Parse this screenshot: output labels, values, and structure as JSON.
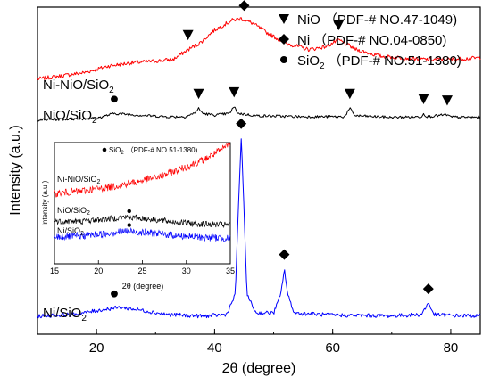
{
  "chart_data": {
    "type": "line",
    "xlabel": "2θ (degree)",
    "ylabel": "Intensity (a.u.)",
    "xlim": [
      10,
      85
    ],
    "x_ticks": [
      20,
      40,
      60,
      80
    ],
    "y_ticks_shown": false,
    "legend_position": "top-right",
    "legend": [
      {
        "marker": "triangle-down",
        "name": "NiO",
        "ref": "（PDF-# NO.47-1049)"
      },
      {
        "marker": "diamond",
        "name": "Ni",
        "ref": "（PDF-# NO.04-0850)"
      },
      {
        "marker": "circle",
        "name": "SiO",
        "sub": "2",
        "ref": "（PDF-# NO.51-1380)"
      }
    ],
    "series": [
      {
        "label_main": "Ni-NiO/SiO",
        "label_sub": "2",
        "color": "#ff0000",
        "points": [
          [
            10,
            0.78
          ],
          [
            14,
            0.79
          ],
          [
            18,
            0.8
          ],
          [
            22,
            0.82
          ],
          [
            26,
            0.83
          ],
          [
            30,
            0.835
          ],
          [
            33,
            0.84
          ],
          [
            35.5,
            0.87
          ],
          [
            37.5,
            0.89
          ],
          [
            40,
            0.93
          ],
          [
            43,
            0.96
          ],
          [
            44.5,
            0.965
          ],
          [
            46.5,
            0.95
          ],
          [
            49,
            0.92
          ],
          [
            52,
            0.89
          ],
          [
            56,
            0.87
          ],
          [
            59,
            0.88
          ],
          [
            61,
            0.9
          ],
          [
            64,
            0.87
          ],
          [
            68,
            0.85
          ],
          [
            72,
            0.845
          ],
          [
            76,
            0.84
          ],
          [
            80,
            0.84
          ],
          [
            85,
            0.845
          ]
        ]
      },
      {
        "label_main": "NiO/SiO",
        "label_sub": "2",
        "color": "#000000",
        "points": [
          [
            10,
            0.655
          ],
          [
            20,
            0.66
          ],
          [
            23,
            0.675
          ],
          [
            27,
            0.67
          ],
          [
            32,
            0.665
          ],
          [
            35,
            0.665
          ],
          [
            36.5,
            0.675
          ],
          [
            37.3,
            0.69
          ],
          [
            38,
            0.675
          ],
          [
            40,
            0.67
          ],
          [
            42.5,
            0.675
          ],
          [
            43.3,
            0.695
          ],
          [
            44,
            0.675
          ],
          [
            47,
            0.668
          ],
          [
            55,
            0.665
          ],
          [
            62,
            0.665
          ],
          [
            62.9,
            0.69
          ],
          [
            63.8,
            0.668
          ],
          [
            70,
            0.663
          ],
          [
            75,
            0.665
          ],
          [
            75.4,
            0.674
          ],
          [
            76,
            0.665
          ],
          [
            79.3,
            0.671
          ],
          [
            80,
            0.664
          ],
          [
            85,
            0.663
          ]
        ]
      },
      {
        "label_main": "Ni/SiO",
        "label_sub": "2",
        "color": "#0000ff",
        "points": [
          [
            10,
            0.055
          ],
          [
            16,
            0.06
          ],
          [
            21,
            0.075
          ],
          [
            24,
            0.082
          ],
          [
            27,
            0.075
          ],
          [
            32,
            0.06
          ],
          [
            38,
            0.055
          ],
          [
            42,
            0.06
          ],
          [
            43.5,
            0.12
          ],
          [
            44.1,
            0.42
          ],
          [
            44.5,
            0.6
          ],
          [
            44.9,
            0.42
          ],
          [
            45.5,
            0.12
          ],
          [
            47,
            0.065
          ],
          [
            50,
            0.065
          ],
          [
            51.2,
            0.12
          ],
          [
            51.8,
            0.2
          ],
          [
            52.4,
            0.12
          ],
          [
            53.5,
            0.065
          ],
          [
            60,
            0.058
          ],
          [
            70,
            0.056
          ],
          [
            75,
            0.06
          ],
          [
            76.2,
            0.095
          ],
          [
            77.2,
            0.06
          ],
          [
            80,
            0.057
          ],
          [
            85,
            0.056
          ]
        ]
      }
    ],
    "markers": [
      {
        "type": "triangle-down",
        "x": 35.5,
        "series": "Ni-NiO/SiO2"
      },
      {
        "type": "diamond",
        "x": 45,
        "series": "Ni-NiO/SiO2"
      },
      {
        "type": "triangle-down",
        "x": 61,
        "series": "Ni-NiO/SiO2"
      },
      {
        "type": "circle",
        "x": 23,
        "series": "NiO/SiO2"
      },
      {
        "type": "triangle-down",
        "x": 37.3,
        "series": "NiO/SiO2"
      },
      {
        "type": "triangle-down",
        "x": 43.3,
        "series": "NiO/SiO2"
      },
      {
        "type": "triangle-down",
        "x": 62.9,
        "series": "NiO/SiO2"
      },
      {
        "type": "triangle-down",
        "x": 75.4,
        "series": "NiO/SiO2"
      },
      {
        "type": "triangle-down",
        "x": 79.4,
        "series": "NiO/SiO2"
      },
      {
        "type": "diamond",
        "x": 44.5,
        "series": "Ni/SiO2"
      },
      {
        "type": "diamond",
        "x": 51.8,
        "series": "Ni/SiO2"
      },
      {
        "type": "diamond",
        "x": 76.2,
        "series": "Ni/SiO2"
      },
      {
        "type": "circle",
        "x": 23,
        "series": "Ni/SiO2"
      }
    ],
    "inset": {
      "xlabel": "2θ (degree)",
      "ylabel": "Intensity (a.u.)",
      "xlim": [
        15,
        35
      ],
      "x_ticks": [
        15,
        20,
        25,
        30,
        35
      ],
      "legend": {
        "marker": "circle",
        "name": "SiO",
        "sub": "2",
        "ref": "（PDF-# NO.51-1380)"
      },
      "series": [
        {
          "label_main": "Ni-NiO/SiO",
          "label_sub": "2",
          "color": "#ff0000",
          "points": [
            [
              15,
              0.58
            ],
            [
              18,
              0.6
            ],
            [
              21,
              0.63
            ],
            [
              24,
              0.67
            ],
            [
              27,
              0.72
            ],
            [
              30,
              0.8
            ],
            [
              32,
              0.86
            ],
            [
              34,
              0.94
            ],
            [
              35,
              1.0
            ]
          ]
        },
        {
          "label_main": "NiO/SiO",
          "label_sub": "2",
          "color": "#000000",
          "points": [
            [
              15,
              0.35
            ],
            [
              18,
              0.35
            ],
            [
              21,
              0.37
            ],
            [
              23,
              0.385
            ],
            [
              25,
              0.375
            ],
            [
              28,
              0.35
            ],
            [
              31,
              0.33
            ],
            [
              35,
              0.32
            ]
          ]
        },
        {
          "label_main": "Ni/SiO",
          "label_sub": "2",
          "color": "#0000ff",
          "points": [
            [
              15,
              0.22
            ],
            [
              18,
              0.23
            ],
            [
              21,
              0.25
            ],
            [
              23,
              0.27
            ],
            [
              25,
              0.26
            ],
            [
              28,
              0.24
            ],
            [
              31,
              0.22
            ],
            [
              35,
              0.21
            ]
          ]
        }
      ],
      "markers": [
        {
          "type": "circle",
          "x": 23.5,
          "series": "NiO/SiO2"
        },
        {
          "type": "circle",
          "x": 23.5,
          "series": "Ni/SiO2"
        }
      ]
    }
  }
}
